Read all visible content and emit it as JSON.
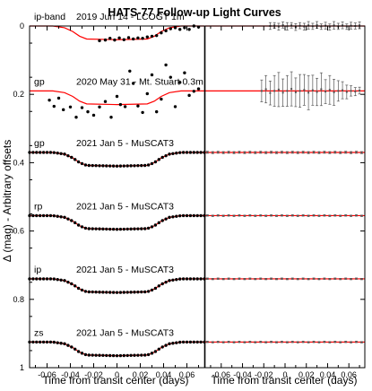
{
  "chart_data": {
    "type": "scatter",
    "title": "HATS-77 Follow-up Light Curves",
    "xlabel": "Time from transit center (days)",
    "ylabel": "Δ (mag) - Arbitrary offsets",
    "xlim": [
      -0.075,
      0.075
    ],
    "ylim": [
      0,
      1
    ],
    "y_inverted": true,
    "xticks": [
      "-0.06",
      "-0.04",
      "-0.02",
      "0",
      "0.02",
      "0.04",
      "0.06"
    ],
    "yticks": [
      "0",
      "0.2",
      "0.4",
      "0.6",
      "0.8",
      "1"
    ],
    "grid": false,
    "panels": [
      "unbinned (left)",
      "binned residuals (right)"
    ],
    "series": [
      {
        "filter": "ip-band",
        "label": "2019 Jun 14 - LCOGT 1m",
        "offset": 0.0,
        "model": [
          [
            -0.075,
            0.0
          ],
          [
            -0.055,
            0.0
          ],
          [
            -0.045,
            0.005
          ],
          [
            -0.038,
            0.016
          ],
          [
            -0.032,
            0.03
          ],
          [
            -0.026,
            0.038
          ],
          [
            0.0,
            0.04
          ],
          [
            0.026,
            0.038
          ],
          [
            0.032,
            0.03
          ],
          [
            0.038,
            0.016
          ],
          [
            0.045,
            0.005
          ],
          [
            0.055,
            0.0
          ],
          [
            0.075,
            0.0
          ]
        ],
        "points": [
          [
            -0.015,
            0.043
          ],
          [
            -0.01,
            0.041
          ],
          [
            -0.006,
            0.036
          ],
          [
            -0.002,
            0.041
          ],
          [
            0.002,
            0.035
          ],
          [
            0.006,
            0.04
          ],
          [
            0.01,
            0.034
          ],
          [
            0.014,
            0.038
          ],
          [
            0.018,
            0.035
          ],
          [
            0.022,
            0.036
          ],
          [
            0.026,
            0.032
          ],
          [
            0.03,
            0.03
          ],
          [
            0.034,
            0.028
          ],
          [
            0.038,
            0.02
          ],
          [
            0.042,
            0.014
          ],
          [
            0.046,
            0.008
          ],
          [
            0.05,
            0.005
          ],
          [
            0.054,
            0.01
          ],
          [
            0.058,
            0.005
          ],
          [
            0.062,
            0.01
          ],
          [
            0.066,
            0.0
          ],
          [
            0.07,
            0.003
          ]
        ],
        "binned": [
          [
            -0.014,
            0.0,
            0.01
          ],
          [
            -0.01,
            -0.002,
            0.008
          ],
          [
            -0.006,
            0.002,
            0.01
          ],
          [
            -0.002,
            -0.003,
            0.009
          ],
          [
            0.002,
            0.001,
            0.011
          ],
          [
            0.006,
            -0.002,
            0.008
          ],
          [
            0.01,
            0.003,
            0.01
          ],
          [
            0.014,
            -0.001,
            0.009
          ],
          [
            0.018,
            0.002,
            0.01
          ],
          [
            0.022,
            -0.002,
            0.011
          ],
          [
            0.026,
            0.001,
            0.009
          ],
          [
            0.03,
            -0.003,
            0.01
          ],
          [
            0.034,
            0.002,
            0.008
          ],
          [
            0.038,
            -0.001,
            0.01
          ],
          [
            0.042,
            0.003,
            0.009
          ],
          [
            0.046,
            -0.002,
            0.011
          ],
          [
            0.05,
            0.001,
            0.009
          ],
          [
            0.054,
            -0.002,
            0.01
          ],
          [
            0.058,
            0.002,
            0.008
          ],
          [
            0.062,
            -0.001,
            0.01
          ],
          [
            0.066,
            0.0,
            0.009
          ],
          [
            0.07,
            -0.002,
            0.01
          ]
        ]
      },
      {
        "filter": "gp",
        "label": "2020 May 31 - Mt. Stuart 0.3m",
        "offset": 0.19,
        "model": [
          [
            -0.075,
            0.0
          ],
          [
            -0.055,
            0.0
          ],
          [
            -0.045,
            0.005
          ],
          [
            -0.038,
            0.016
          ],
          [
            -0.032,
            0.03
          ],
          [
            -0.026,
            0.038
          ],
          [
            0.0,
            0.04
          ],
          [
            0.026,
            0.038
          ],
          [
            0.032,
            0.03
          ],
          [
            0.038,
            0.016
          ],
          [
            0.045,
            0.005
          ],
          [
            0.055,
            0.0
          ],
          [
            0.075,
            0.0
          ]
        ],
        "points": [
          [
            -0.058,
            0.027
          ],
          [
            -0.054,
            0.045
          ],
          [
            -0.05,
            0.021
          ],
          [
            -0.046,
            0.055
          ],
          [
            -0.04,
            0.047
          ],
          [
            -0.035,
            0.077
          ],
          [
            -0.03,
            0.049
          ],
          [
            -0.025,
            0.061
          ],
          [
            -0.02,
            0.071
          ],
          [
            -0.015,
            0.047
          ],
          [
            -0.01,
            0.031
          ],
          [
            -0.005,
            0.077
          ],
          [
            0.0,
            0.016
          ],
          [
            0.003,
            0.04
          ],
          [
            0.007,
            0.046
          ],
          [
            0.011,
            -0.058
          ],
          [
            0.014,
            -0.022
          ],
          [
            0.018,
            0.044
          ],
          [
            0.022,
            0.063
          ],
          [
            0.026,
            0.008
          ],
          [
            0.03,
            -0.047
          ],
          [
            0.034,
            0.061
          ],
          [
            0.038,
            0.024
          ],
          [
            0.042,
            -0.076
          ],
          [
            0.046,
            -0.04
          ],
          [
            0.05,
            0.046
          ],
          [
            0.054,
            -0.025
          ],
          [
            0.058,
            -0.053
          ],
          [
            0.062,
            0.013
          ],
          [
            0.066,
            0.001
          ],
          [
            0.07,
            -0.006
          ]
        ],
        "binned": [
          [
            -0.022,
            0.0,
            0.032
          ],
          [
            -0.018,
            -0.005,
            0.04
          ],
          [
            -0.014,
            0.006,
            0.035
          ],
          [
            -0.01,
            0.0,
            0.045
          ],
          [
            -0.006,
            -0.004,
            0.05
          ],
          [
            -0.002,
            0.005,
            0.04
          ],
          [
            0.002,
            0.0,
            0.045
          ],
          [
            0.006,
            -0.006,
            0.05
          ],
          [
            0.01,
            0.004,
            0.042
          ],
          [
            0.014,
            0.0,
            0.048
          ],
          [
            0.018,
            -0.003,
            0.045
          ],
          [
            0.022,
            0.005,
            0.05
          ],
          [
            0.026,
            -0.002,
            0.044
          ],
          [
            0.03,
            0.003,
            0.04
          ],
          [
            0.034,
            -0.005,
            0.048
          ],
          [
            0.038,
            0.002,
            0.035
          ],
          [
            0.042,
            -0.003,
            0.042
          ],
          [
            0.046,
            0.004,
            0.038
          ],
          [
            0.05,
            0.0,
            0.03
          ],
          [
            0.054,
            -0.002,
            0.025
          ],
          [
            0.058,
            0.003,
            0.02
          ],
          [
            0.062,
            0.0,
            0.015
          ],
          [
            0.066,
            0.002,
            0.012
          ],
          [
            0.07,
            -0.001,
            0.01
          ]
        ]
      },
      {
        "filter": "gp",
        "label": "2021 Jan 5 - MuSCAT3",
        "offset": 0.37,
        "model": [
          [
            -0.075,
            0.0
          ],
          [
            -0.055,
            0.0
          ],
          [
            -0.045,
            0.005
          ],
          [
            -0.038,
            0.016
          ],
          [
            -0.032,
            0.03
          ],
          [
            -0.026,
            0.038
          ],
          [
            0.0,
            0.04
          ],
          [
            0.026,
            0.038
          ],
          [
            0.032,
            0.03
          ],
          [
            0.038,
            0.016
          ],
          [
            0.045,
            0.005
          ],
          [
            0.055,
            0.0
          ],
          [
            0.075,
            0.0
          ]
        ],
        "points": "model_sampled_every_0.003",
        "binned": "zero_residuals_every_0.005_err_0.003"
      },
      {
        "filter": "rp",
        "label": "2021 Jan 5 - MuSCAT3",
        "offset": 0.555,
        "model": [
          [
            -0.075,
            0.0
          ],
          [
            -0.055,
            0.0
          ],
          [
            -0.045,
            0.005
          ],
          [
            -0.038,
            0.016
          ],
          [
            -0.032,
            0.03
          ],
          [
            -0.026,
            0.038
          ],
          [
            0.0,
            0.04
          ],
          [
            0.026,
            0.038
          ],
          [
            0.032,
            0.03
          ],
          [
            0.038,
            0.016
          ],
          [
            0.045,
            0.005
          ],
          [
            0.055,
            0.0
          ],
          [
            0.075,
            0.0
          ]
        ],
        "points": "model_sampled_every_0.003",
        "binned": "zero_residuals_every_0.005_err_0.002"
      },
      {
        "filter": "ip",
        "label": "2021 Jan 5 - MuSCAT3",
        "offset": 0.74,
        "model": [
          [
            -0.075,
            0.0
          ],
          [
            -0.055,
            0.0
          ],
          [
            -0.045,
            0.005
          ],
          [
            -0.038,
            0.016
          ],
          [
            -0.032,
            0.03
          ],
          [
            -0.026,
            0.038
          ],
          [
            0.0,
            0.04
          ],
          [
            0.026,
            0.038
          ],
          [
            0.032,
            0.03
          ],
          [
            0.038,
            0.016
          ],
          [
            0.045,
            0.005
          ],
          [
            0.055,
            0.0
          ],
          [
            0.075,
            0.0
          ]
        ],
        "points": "model_sampled_every_0.003",
        "binned": "zero_residuals_every_0.005_err_0.002"
      },
      {
        "filter": "zs",
        "label": "2021 Jan 5 - MuSCAT3",
        "offset": 0.925,
        "model": [
          [
            -0.075,
            0.0
          ],
          [
            -0.055,
            0.0
          ],
          [
            -0.045,
            0.005
          ],
          [
            -0.038,
            0.016
          ],
          [
            -0.032,
            0.03
          ],
          [
            -0.026,
            0.038
          ],
          [
            0.0,
            0.04
          ],
          [
            0.026,
            0.038
          ],
          [
            0.032,
            0.03
          ],
          [
            0.038,
            0.016
          ],
          [
            0.045,
            0.005
          ],
          [
            0.055,
            0.0
          ],
          [
            0.075,
            0.0
          ]
        ],
        "points": "model_sampled_every_0.003",
        "binned": "zero_residuals_every_0.005_err_0.002"
      }
    ],
    "colors": {
      "model": "#ff0000",
      "points": "#000000",
      "binned": "#555555"
    }
  }
}
